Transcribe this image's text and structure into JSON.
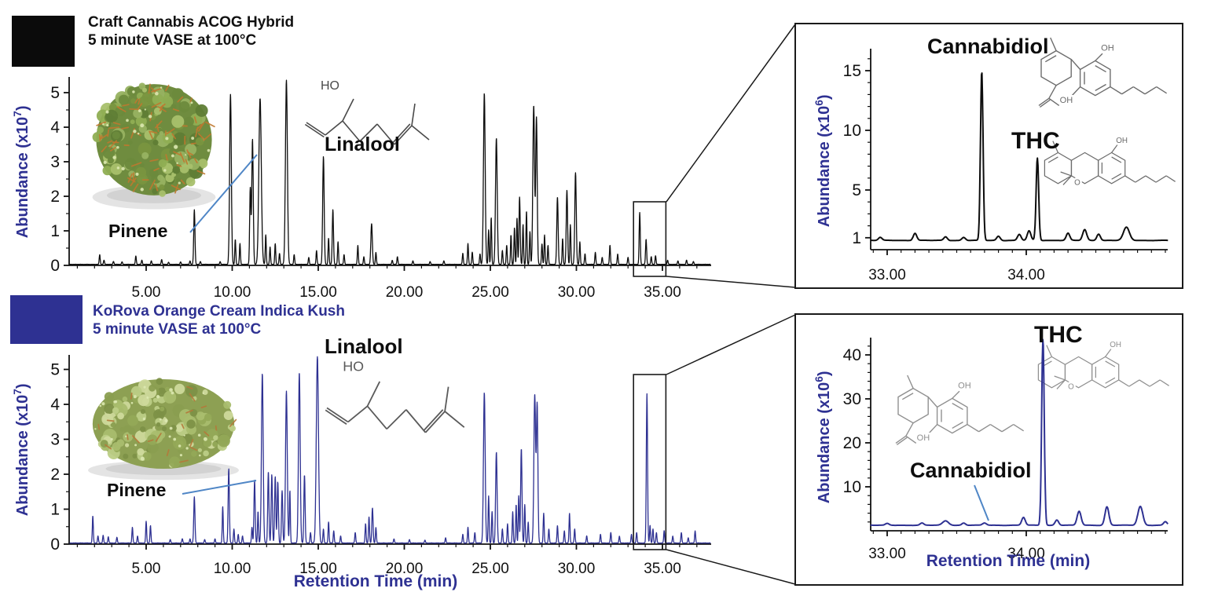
{
  "panels": [
    {
      "id": "top",
      "swatch_color": "#0b0b0b",
      "title_color": "#111111",
      "title_line1": "Craft Cannabis ACOG Hybrid",
      "title_line2": "5 minute VASE at 100°C"
    },
    {
      "id": "bottom",
      "swatch_color": "#2E3192",
      "title_color": "#2E3192",
      "title_line1": "KoRova Orange Cream Indica Kush",
      "title_line2": "5 minute VASE at 100°C"
    }
  ],
  "axis_labels": {
    "abundance_prefix": "Abundance (x10",
    "abundance_exp_main": "7",
    "abundance_exp_inset": "6",
    "abundance_suffix": ")",
    "retention": "Retention Time (min)"
  },
  "annotations": {
    "pinene": "Pinene",
    "linalool": "Linalool",
    "cannabidiol": "Cannabidiol",
    "thc": "THC",
    "ho": "HO",
    "oh": "OH",
    "o": "O"
  },
  "colors": {
    "navy": "#2E3192",
    "black_trace": "#0d0d0d",
    "blue_trace": "#2E3192",
    "callout_blue": "#4f86c6",
    "axis": "#111111",
    "structure_dark": "#4a4a4a",
    "structure_gray": "#6b6b6b",
    "structure_light": "#8f8f8f"
  },
  "chart_data": [
    {
      "id": "main-top",
      "type": "line",
      "series_name": "Craft Cannabis ACOG Hybrid, 5 minute VASE at 100°C",
      "ylabel": "Abundance (x10^7)",
      "xlabel": "Retention Time (min)",
      "xlim": [
        0.55,
        37.8
      ],
      "ylim": [
        0,
        5.45
      ],
      "x_ticks": [
        {
          "t": 5,
          "label": "5.00"
        },
        {
          "t": 10,
          "label": "10.00"
        },
        {
          "t": 15,
          "label": "15.00"
        },
        {
          "t": 20,
          "label": "20.00"
        },
        {
          "t": 25,
          "label": "25.00"
        },
        {
          "t": 30,
          "label": "30.00"
        },
        {
          "t": 35,
          "label": "35.00"
        }
      ],
      "y_ticks": [
        {
          "v": 0,
          "label": "0"
        },
        {
          "v": 1,
          "label": "1"
        },
        {
          "v": 2,
          "label": "2"
        },
        {
          "v": 3,
          "label": "3"
        },
        {
          "v": 4,
          "label": "4"
        },
        {
          "v": 5,
          "label": "5"
        }
      ],
      "x_minor_step": 1,
      "y_minor_step": 0.5,
      "color": "#0d0d0d",
      "baseline": 0.025,
      "noise": 0.012,
      "dt": 0.012,
      "default_width": 0.04,
      "zoom_region": [
        33.32,
        35.2
      ],
      "labeled_peaks": [
        {
          "name": "Pinene",
          "t": 7.8
        },
        {
          "name": "Linalool",
          "t": 15.3
        }
      ],
      "peaks": [
        [
          2.3,
          0.28
        ],
        [
          2.55,
          0.12
        ],
        [
          3.1,
          0.09
        ],
        [
          3.6,
          0.07
        ],
        [
          4.4,
          0.24
        ],
        [
          4.75,
          0.12
        ],
        [
          5.3,
          0.1
        ],
        [
          5.9,
          0.14
        ],
        [
          6.3,
          0.06
        ],
        [
          7.0,
          0.07
        ],
        [
          7.55,
          0.1
        ],
        [
          7.8,
          1.58,
          0.05
        ],
        [
          8.15,
          0.08
        ],
        [
          9.3,
          0.08
        ],
        [
          9.9,
          4.92,
          0.07
        ],
        [
          10.18,
          0.72
        ],
        [
          10.45,
          0.6
        ],
        [
          11.05,
          2.2,
          0.05
        ],
        [
          11.18,
          3.62,
          0.06
        ],
        [
          11.62,
          4.8,
          0.1
        ],
        [
          11.95,
          0.85
        ],
        [
          12.2,
          0.5
        ],
        [
          12.5,
          0.6
        ],
        [
          12.75,
          0.32
        ],
        [
          13.15,
          5.33,
          0.08
        ],
        [
          13.6,
          0.28
        ],
        [
          14.45,
          0.2
        ],
        [
          14.9,
          0.4
        ],
        [
          15.3,
          3.12,
          0.06
        ],
        [
          15.6,
          0.75
        ],
        [
          15.85,
          1.58,
          0.05
        ],
        [
          16.15,
          0.65
        ],
        [
          16.5,
          0.28
        ],
        [
          17.3,
          0.55
        ],
        [
          17.65,
          0.22
        ],
        [
          18.1,
          1.18,
          0.06
        ],
        [
          18.35,
          0.35
        ],
        [
          19.3,
          0.12
        ],
        [
          19.6,
          0.22
        ],
        [
          20.5,
          0.1
        ],
        [
          21.5,
          0.08
        ],
        [
          22.3,
          0.1
        ],
        [
          23.4,
          0.32
        ],
        [
          23.7,
          0.6
        ],
        [
          23.95,
          0.35
        ],
        [
          24.4,
          0.3
        ],
        [
          24.65,
          4.95,
          0.07
        ],
        [
          24.9,
          1.0
        ],
        [
          25.05,
          1.35
        ],
        [
          25.35,
          3.65,
          0.07
        ],
        [
          25.7,
          0.4
        ],
        [
          25.95,
          0.55
        ],
        [
          26.2,
          0.85
        ],
        [
          26.4,
          1.05
        ],
        [
          26.55,
          1.35
        ],
        [
          26.7,
          1.95,
          0.05
        ],
        [
          26.9,
          1.15
        ],
        [
          27.1,
          1.55
        ],
        [
          27.3,
          0.95
        ],
        [
          27.52,
          4.6,
          0.07
        ],
        [
          27.68,
          4.25,
          0.06
        ],
        [
          28.0,
          0.6
        ],
        [
          28.15,
          0.85
        ],
        [
          28.35,
          0.55
        ],
        [
          28.9,
          1.95,
          0.055
        ],
        [
          29.2,
          0.75
        ],
        [
          29.45,
          2.15,
          0.055
        ],
        [
          29.65,
          1.15
        ],
        [
          29.95,
          2.65,
          0.06
        ],
        [
          30.2,
          0.65
        ],
        [
          30.5,
          0.3
        ],
        [
          31.1,
          0.35
        ],
        [
          31.5,
          0.2
        ],
        [
          31.95,
          0.55
        ],
        [
          32.4,
          0.3
        ],
        [
          33.0,
          0.2
        ],
        [
          33.68,
          1.5,
          0.045
        ],
        [
          34.05,
          0.72,
          0.045
        ],
        [
          34.35,
          0.22
        ],
        [
          34.6,
          0.25
        ],
        [
          35.3,
          0.12
        ],
        [
          35.9,
          0.1
        ],
        [
          36.4,
          0.12
        ],
        [
          36.8,
          0.08
        ]
      ]
    },
    {
      "id": "main-bottom",
      "type": "line",
      "series_name": "KoRova Orange Cream Indica Kush, 5 minute VASE at 100°C",
      "ylabel": "Abundance (x10^7)",
      "xlabel": "Retention Time (min)",
      "xlim": [
        0.55,
        37.8
      ],
      "ylim": [
        0,
        5.45
      ],
      "x_ticks": [
        {
          "t": 5,
          "label": "5.00"
        },
        {
          "t": 10,
          "label": "10.00"
        },
        {
          "t": 15,
          "label": "15.00"
        },
        {
          "t": 20,
          "label": "20.00"
        },
        {
          "t": 25,
          "label": "25.00"
        },
        {
          "t": 30,
          "label": "30.00"
        },
        {
          "t": 35,
          "label": "35.00"
        }
      ],
      "y_ticks": [
        {
          "v": 0,
          "label": "0"
        },
        {
          "v": 1,
          "label": "1"
        },
        {
          "v": 2,
          "label": "2"
        },
        {
          "v": 3,
          "label": "3"
        },
        {
          "v": 4,
          "label": "4"
        },
        {
          "v": 5,
          "label": "5"
        }
      ],
      "x_minor_step": 1,
      "y_minor_step": 0.5,
      "color": "#2E3192",
      "baseline": 0.025,
      "noise": 0.015,
      "dt": 0.012,
      "default_width": 0.04,
      "zoom_region": [
        33.32,
        35.2
      ],
      "labeled_peaks": [
        {
          "name": "Pinene",
          "t": 7.8
        },
        {
          "name": "Linalool",
          "t": 14.95
        }
      ],
      "peaks": [
        [
          1.9,
          0.78
        ],
        [
          2.2,
          0.2
        ],
        [
          2.5,
          0.22
        ],
        [
          2.8,
          0.18
        ],
        [
          3.3,
          0.16
        ],
        [
          4.2,
          0.45
        ],
        [
          4.5,
          0.2
        ],
        [
          5.0,
          0.62
        ],
        [
          5.25,
          0.5
        ],
        [
          6.4,
          0.1
        ],
        [
          7.1,
          0.12
        ],
        [
          7.55,
          0.12
        ],
        [
          7.8,
          1.32,
          0.05
        ],
        [
          8.4,
          0.1
        ],
        [
          9.0,
          0.12
        ],
        [
          9.45,
          1.05
        ],
        [
          9.8,
          2.12,
          0.05
        ],
        [
          10.1,
          0.4
        ],
        [
          10.35,
          0.25
        ],
        [
          10.6,
          0.2
        ],
        [
          11.15,
          0.45
        ],
        [
          11.3,
          1.8,
          0.05
        ],
        [
          11.5,
          0.9
        ],
        [
          11.75,
          4.85,
          0.07
        ],
        [
          12.1,
          2.05,
          0.05
        ],
        [
          12.3,
          1.95,
          0.05
        ],
        [
          12.5,
          1.9,
          0.05
        ],
        [
          12.65,
          1.75,
          0.05
        ],
        [
          12.9,
          1.5,
          0.05
        ],
        [
          13.15,
          4.35,
          0.07
        ],
        [
          13.35,
          1.5
        ],
        [
          13.9,
          4.88,
          0.07
        ],
        [
          14.2,
          1.95,
          0.05
        ],
        [
          14.55,
          0.3
        ],
        [
          14.95,
          5.33,
          0.09
        ],
        [
          15.3,
          0.4
        ],
        [
          15.6,
          0.6
        ],
        [
          15.9,
          0.35
        ],
        [
          16.3,
          0.2
        ],
        [
          17.15,
          0.3
        ],
        [
          17.75,
          0.55
        ],
        [
          17.95,
          0.75
        ],
        [
          18.15,
          1.0,
          0.05
        ],
        [
          18.35,
          0.45
        ],
        [
          19.4,
          0.12
        ],
        [
          20.3,
          0.1
        ],
        [
          21.2,
          0.08
        ],
        [
          22.4,
          0.15
        ],
        [
          23.4,
          0.25
        ],
        [
          23.7,
          0.45
        ],
        [
          24.1,
          0.3
        ],
        [
          24.65,
          4.3,
          0.07
        ],
        [
          24.9,
          1.35
        ],
        [
          25.1,
          0.9
        ],
        [
          25.35,
          2.6,
          0.06
        ],
        [
          25.7,
          0.4
        ],
        [
          26.0,
          0.55
        ],
        [
          26.3,
          0.9
        ],
        [
          26.5,
          1.1
        ],
        [
          26.65,
          1.35
        ],
        [
          26.8,
          2.7,
          0.055
        ],
        [
          27.0,
          1.1
        ],
        [
          27.2,
          0.6
        ],
        [
          27.58,
          4.25,
          0.07
        ],
        [
          27.72,
          3.95,
          0.06
        ],
        [
          28.1,
          0.85
        ],
        [
          28.4,
          0.4
        ],
        [
          28.9,
          0.5
        ],
        [
          29.3,
          0.35
        ],
        [
          29.6,
          0.85
        ],
        [
          29.9,
          0.4
        ],
        [
          30.6,
          0.2
        ],
        [
          31.4,
          0.25
        ],
        [
          32.0,
          0.3
        ],
        [
          32.5,
          0.2
        ],
        [
          33.2,
          0.25
        ],
        [
          33.5,
          0.3
        ],
        [
          34.1,
          4.28,
          0.05
        ],
        [
          34.28,
          0.5
        ],
        [
          34.45,
          0.4
        ],
        [
          34.65,
          0.3
        ],
        [
          35.1,
          0.35
        ],
        [
          35.6,
          0.2
        ],
        [
          36.1,
          0.3
        ],
        [
          36.5,
          0.15
        ],
        [
          36.9,
          0.35
        ]
      ]
    },
    {
      "id": "inset-top",
      "type": "line",
      "series_name": "Craft Cannabis ACOG Hybrid (zoom 33-35 min)",
      "ylabel": "Abundance (x10^6)",
      "xlabel": "",
      "xlim": [
        32.88,
        35.02
      ],
      "ylim": [
        0,
        16.8
      ],
      "x_ticks": [
        {
          "t": 33,
          "label": "33.00"
        },
        {
          "t": 34,
          "label": "34.00"
        }
      ],
      "y_ticks": [
        {
          "v": 1,
          "label": "1"
        },
        {
          "v": 5,
          "label": "5"
        },
        {
          "v": 10,
          "label": "10"
        },
        {
          "v": 15,
          "label": "15"
        }
      ],
      "x_minor_step": 0.1,
      "y_minor_step": 1,
      "color": "#0d0d0d",
      "baseline": 0.75,
      "noise": 0.06,
      "dt": 0.0035,
      "default_width": 0.018,
      "labeled_peaks": [
        {
          "name": "Cannabidiol",
          "t": 33.68,
          "abundance_x10e6": 15.0
        },
        {
          "name": "THC",
          "t": 34.08,
          "abundance_x10e6": 7.6
        }
      ],
      "peaks": [
        [
          32.95,
          0.25
        ],
        [
          33.2,
          0.6
        ],
        [
          33.42,
          0.3
        ],
        [
          33.55,
          0.25
        ],
        [
          33.68,
          14.2,
          0.013
        ],
        [
          33.8,
          0.35
        ],
        [
          33.95,
          0.5
        ],
        [
          34.02,
          0.8
        ],
        [
          34.08,
          6.9,
          0.013
        ],
        [
          34.3,
          0.6
        ],
        [
          34.42,
          0.9,
          0.02
        ],
        [
          34.52,
          0.55
        ],
        [
          34.72,
          1.1,
          0.03
        ]
      ]
    },
    {
      "id": "inset-bottom",
      "type": "line",
      "series_name": "KoRova Orange Cream Indica Kush (zoom 33-35 min)",
      "ylabel": "Abundance (x10^6)",
      "xlabel": "Retention Time (min)",
      "xlim": [
        32.88,
        35.02
      ],
      "ylim": [
        0,
        46
      ],
      "x_ticks": [
        {
          "t": 33,
          "label": "33.00"
        },
        {
          "t": 34,
          "label": "34.00"
        }
      ],
      "y_ticks": [
        {
          "v": 10,
          "label": "10"
        },
        {
          "v": 20,
          "label": "20"
        },
        {
          "v": 30,
          "label": "30"
        },
        {
          "v": 40,
          "label": "40"
        }
      ],
      "x_minor_step": 0.1,
      "y_minor_step": 2,
      "color": "#2E3192",
      "baseline": 1.2,
      "noise": 0.12,
      "dt": 0.0035,
      "default_width": 0.018,
      "labeled_peaks": [
        {
          "name": "THC",
          "t": 34.12,
          "abundance_x10e6": 43.0
        },
        {
          "name": "Cannabidiol",
          "t": 33.7,
          "abundance_x10e6": 1.7
        }
      ],
      "peaks": [
        [
          33.0,
          0.4
        ],
        [
          33.25,
          0.5
        ],
        [
          33.42,
          1.0,
          0.03
        ],
        [
          33.55,
          0.5
        ],
        [
          33.7,
          0.5,
          0.02
        ],
        [
          33.98,
          1.8
        ],
        [
          34.12,
          42.5,
          0.013
        ],
        [
          34.22,
          1.2
        ],
        [
          34.38,
          3.2,
          0.02
        ],
        [
          34.58,
          4.2,
          0.02
        ],
        [
          34.82,
          4.3,
          0.025
        ],
        [
          35.0,
          0.8
        ]
      ]
    }
  ]
}
